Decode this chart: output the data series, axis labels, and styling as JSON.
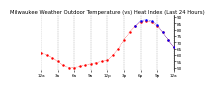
{
  "title": "Milwaukee Weather Outdoor Temperature (vs) Heat Index (Last 24 Hours)",
  "temp_color": "#ff0000",
  "heat_color": "#0000ff",
  "bg_color": "#ffffff",
  "grid_color": "#888888",
  "ylim": [
    48,
    92
  ],
  "yticks": [
    50,
    55,
    60,
    65,
    70,
    75,
    80,
    85,
    90
  ],
  "xlim": [
    0,
    24
  ],
  "temp": [
    [
      0,
      62
    ],
    [
      1,
      60
    ],
    [
      2,
      58
    ],
    [
      3,
      55
    ],
    [
      4,
      52
    ],
    [
      5,
      50
    ],
    [
      6,
      50
    ],
    [
      7,
      51
    ],
    [
      8,
      52
    ],
    [
      9,
      53
    ],
    [
      10,
      54
    ],
    [
      11,
      55
    ],
    [
      12,
      56
    ],
    [
      13,
      60
    ],
    [
      14,
      65
    ],
    [
      15,
      72
    ],
    [
      16,
      78
    ],
    [
      17,
      83
    ],
    [
      18,
      86
    ],
    [
      19,
      87
    ],
    [
      20,
      86
    ],
    [
      21,
      83
    ],
    [
      22,
      78
    ],
    [
      23,
      72
    ],
    [
      24,
      66
    ]
  ],
  "heat_index": [
    [
      17,
      83
    ],
    [
      18,
      87
    ],
    [
      19,
      88
    ],
    [
      20,
      87
    ],
    [
      21,
      84
    ],
    [
      22,
      78
    ],
    [
      23,
      72
    ],
    [
      24,
      66
    ]
  ],
  "marker_size": 1.5,
  "linewidth": 0.4,
  "title_fontsize": 3.8,
  "tick_fontsize": 3.0,
  "xtick_positions": [
    0,
    3,
    6,
    9,
    12,
    15,
    18,
    21,
    24
  ],
  "xtick_labels": [
    "12a",
    "3a",
    "6a",
    "9a",
    "12p",
    "3p",
    "6p",
    "9p",
    "12a"
  ]
}
